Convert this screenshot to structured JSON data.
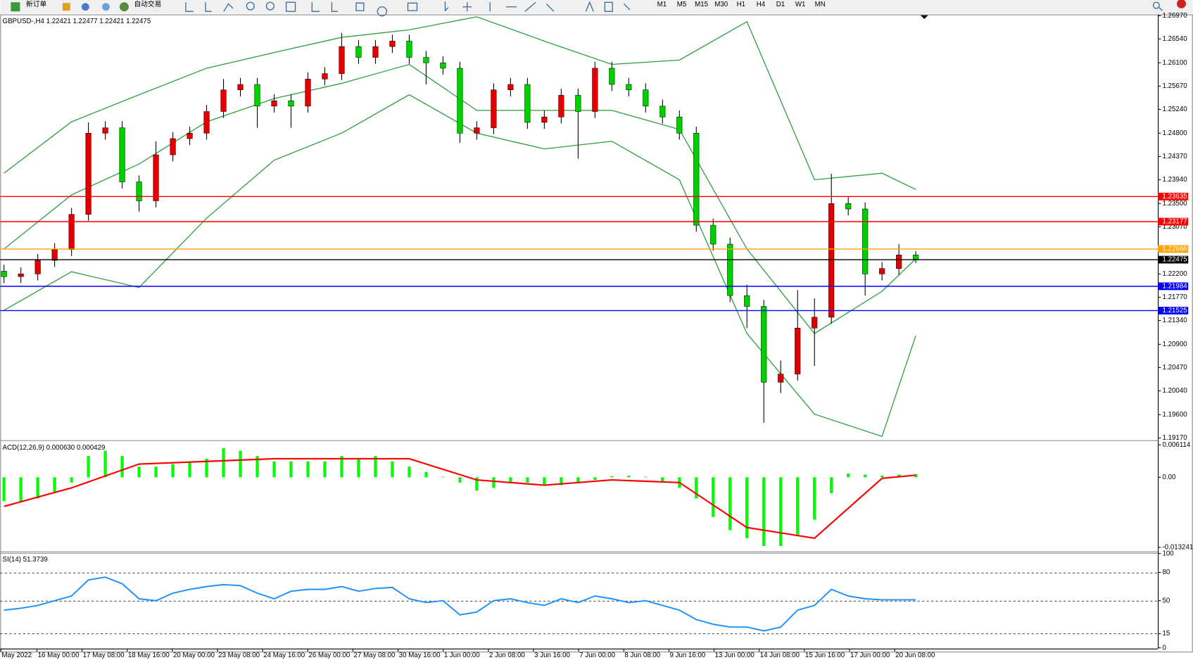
{
  "toolbar": {
    "new_order": "新订单",
    "auto_trade": "自动交易",
    "timeframes": [
      "M1",
      "M5",
      "M15",
      "M30",
      "H1",
      "H4",
      "D1",
      "W1",
      "MN"
    ]
  },
  "time_axis": [
    "May 2022",
    "16 May 00:00",
    "17 May 08:00",
    "18 May 16:00",
    "20 May 00:00",
    "23 May 08:00",
    "24 May 16:00",
    "26 May 00:00",
    "27 May 08:00",
    "30 May 16:00",
    "1 Jun 00:00",
    "2 Jun 08:00",
    "3 Jun 16:00",
    "7 Jun 00:00",
    "8 Jun 08:00",
    "9 Jun 16:00",
    "13 Jun 00:00",
    "14 Jun 08:00",
    "15 Jun 16:00",
    "17 Jun 00:00",
    "20 Jun 08:00"
  ],
  "chart_data": [
    {
      "type": "candlestick",
      "title": "GBPUSD-,H4  1.22421 1.22477 1.22421 1.22475",
      "up_color": "#e00000",
      "down_color": "#00d000",
      "wick_color": "#000000",
      "open": [
        1.2225,
        1.2215,
        1.222,
        1.2245,
        1.2265,
        1.233,
        1.248,
        1.249,
        1.239,
        1.2355,
        1.244,
        1.247,
        1.248,
        1.252,
        1.256,
        1.257,
        1.253,
        1.254,
        1.253,
        1.258,
        1.259,
        1.264,
        1.262,
        1.264,
        1.265,
        1.262,
        1.261,
        1.26,
        1.248,
        1.249,
        1.256,
        1.257,
        1.25,
        1.251,
        1.255,
        1.252,
        1.26,
        1.257,
        1.256,
        1.253,
        1.251,
        1.248,
        1.231,
        1.2275,
        1.218,
        1.216,
        1.202,
        1.2035,
        1.212,
        1.214,
        1.235,
        1.234,
        1.222,
        1.223,
        1.2255
      ],
      "high": [
        1.2237,
        1.2232,
        1.2257,
        1.2277,
        1.2342,
        1.25,
        1.2502,
        1.2502,
        1.2402,
        1.2465,
        1.2482,
        1.2492,
        1.2532,
        1.258,
        1.2582,
        1.2582,
        1.2552,
        1.2552,
        1.2592,
        1.2602,
        1.2665,
        1.2652,
        1.2652,
        1.2662,
        1.2662,
        1.2632,
        1.2622,
        1.2612,
        1.2502,
        1.2572,
        1.2582,
        1.2582,
        1.2522,
        1.2562,
        1.2562,
        1.2612,
        1.2612,
        1.2582,
        1.2572,
        1.2542,
        1.2522,
        1.2492,
        1.2322,
        1.2287,
        1.22,
        1.2172,
        1.206,
        1.219,
        1.2175,
        1.2405,
        1.2362,
        1.2352,
        1.2242,
        1.2275,
        1.2262
      ],
      "low": [
        1.2203,
        1.2203,
        1.2208,
        1.2233,
        1.2253,
        1.2318,
        1.2468,
        1.2378,
        1.2335,
        1.2343,
        1.2428,
        1.2458,
        1.2468,
        1.2508,
        1.2548,
        1.249,
        1.2518,
        1.249,
        1.2518,
        1.2568,
        1.2578,
        1.2608,
        1.2608,
        1.2628,
        1.2608,
        1.257,
        1.2588,
        1.2462,
        1.2468,
        1.2478,
        1.2548,
        1.2488,
        1.2488,
        1.2498,
        1.2433,
        1.2508,
        1.2558,
        1.2548,
        1.2518,
        1.2498,
        1.2468,
        1.2298,
        1.2263,
        1.2168,
        1.212,
        1.1945,
        1.2,
        1.2023,
        1.205,
        1.2128,
        1.2328,
        1.218,
        1.2208,
        1.2218,
        1.224
      ],
      "close": [
        1.2215,
        1.222,
        1.2245,
        1.2265,
        1.233,
        1.248,
        1.249,
        1.239,
        1.2355,
        1.244,
        1.247,
        1.248,
        1.252,
        1.256,
        1.257,
        1.253,
        1.254,
        1.253,
        1.258,
        1.259,
        1.264,
        1.262,
        1.264,
        1.265,
        1.262,
        1.261,
        1.26,
        1.248,
        1.249,
        1.256,
        1.257,
        1.25,
        1.251,
        1.255,
        1.252,
        1.26,
        1.257,
        1.256,
        1.253,
        1.251,
        1.248,
        1.231,
        1.2275,
        1.218,
        1.216,
        1.202,
        1.2035,
        1.212,
        1.214,
        1.235,
        1.234,
        1.222,
        1.223,
        1.2255,
        1.2247
      ],
      "series": [
        {
          "color": "#2e9e3e",
          "x": [
            0,
            4,
            8,
            12,
            16,
            20,
            24,
            28,
            32,
            36,
            40,
            44,
            48,
            52,
            54
          ],
          "values": [
            1.2406,
            1.2501,
            1.2551,
            1.26,
            1.2629,
            1.2657,
            1.2671,
            1.2695,
            1.265,
            1.2607,
            1.2615,
            1.2686,
            1.2394,
            1.2406,
            1.2376
          ]
        },
        {
          "color": "#2e9e3e",
          "x": [
            0,
            4,
            8,
            12,
            16,
            20,
            24,
            28,
            32,
            36,
            40,
            44,
            48,
            52,
            54
          ],
          "values": [
            1.2266,
            1.2366,
            1.2423,
            1.2501,
            1.2544,
            1.2572,
            1.2607,
            1.2522,
            1.2522,
            1.2522,
            1.2487,
            1.2266,
            1.211,
            1.2188,
            1.2248
          ]
        },
        {
          "color": "#2e9e3e",
          "x": [
            0,
            4,
            8,
            12,
            16,
            20,
            24,
            28,
            32,
            36,
            40,
            44,
            48,
            52,
            54
          ],
          "values": [
            1.2153,
            1.2224,
            1.2195,
            1.2323,
            1.243,
            1.248,
            1.2551,
            1.248,
            1.2451,
            1.2465,
            1.2394,
            1.211,
            1.1961,
            1.192,
            1.2106
          ]
        }
      ],
      "levels": [
        {
          "value": 1.23635,
          "color": "#ff0000"
        },
        {
          "value": 1.23177,
          "color": "#ff0000"
        },
        {
          "value": 1.22666,
          "color": "#ffa500"
        },
        {
          "value": 1.22475,
          "color": "#000000"
        },
        {
          "value": 1.21984,
          "color": "#0000ff"
        },
        {
          "value": 1.21525,
          "color": "#0000ff"
        }
      ],
      "ylim": [
        1.19142,
        1.26979
      ],
      "yticks": [
        {
          "value": 1.2697,
          "label": "1.26970"
        },
        {
          "value": 1.2654,
          "label": "1.26540"
        },
        {
          "value": 1.261,
          "label": "1.26100"
        },
        {
          "value": 1.2567,
          "label": "1.25670"
        },
        {
          "value": 1.2524,
          "label": "1.25240"
        },
        {
          "value": 1.248,
          "label": "1.24800"
        },
        {
          "value": 1.2437,
          "label": "1.24370"
        },
        {
          "value": 1.2394,
          "label": "1.23940"
        },
        {
          "value": 1.235,
          "label": "1.23500"
        },
        {
          "value": 1.2307,
          "label": "1.23070"
        },
        {
          "value": 1.222,
          "label": "1.22200"
        },
        {
          "value": 1.2177,
          "label": "1.21770"
        },
        {
          "value": 1.2134,
          "label": "1.21340"
        },
        {
          "value": 1.209,
          "label": "1.20900"
        },
        {
          "value": 1.2047,
          "label": "1.20470"
        },
        {
          "value": 1.2004,
          "label": "1.20040"
        },
        {
          "value": 1.196,
          "label": "1.19600"
        },
        {
          "value": 1.1917,
          "label": "1.19170"
        }
      ]
    },
    {
      "type": "bar",
      "title": "ACD(12,26,9) 0.000630 0.000429",
      "color": "#00ff00",
      "values": [
        -0.0045,
        -0.0045,
        -0.004,
        -0.003,
        -0.001,
        0.004,
        0.005,
        0.004,
        0.002,
        0.002,
        0.0025,
        0.003,
        0.0035,
        0.0055,
        0.005,
        0.004,
        0.003,
        0.003,
        0.003,
        0.003,
        0.004,
        0.0035,
        0.004,
        0.003,
        0.002,
        0.001,
        0.0001,
        -0.001,
        -0.0025,
        -0.002,
        -0.001,
        -0.001,
        -0.0015,
        -0.0015,
        -0.001,
        -0.0005,
        0.0002,
        0.0003,
        0.0001,
        -0.001,
        -0.002,
        -0.004,
        -0.0075,
        -0.01,
        -0.0115,
        -0.013,
        -0.013,
        -0.011,
        -0.008,
        -0.003,
        0.0007,
        0.0005,
        0.0003,
        0.0005,
        0.0006
      ],
      "series": [
        {
          "color": "#ff0000",
          "x": [
            0,
            4,
            8,
            12,
            16,
            20,
            24,
            28,
            32,
            36,
            40,
            44,
            48,
            52,
            54
          ],
          "values": [
            -0.0055,
            -0.002,
            0.0025,
            0.003,
            0.0035,
            0.0035,
            0.0035,
            -0.0005,
            -0.0015,
            -0.0005,
            -0.001,
            -0.0095,
            -0.0115,
            -0.0002,
            0.0004
          ]
        }
      ],
      "ylim": [
        -0.01383,
        0.0067
      ],
      "yticks": [
        0.006114,
        {
          "value": 0,
          "label": "0.00"
        },
        -0.013241
      ]
    },
    {
      "type": "line",
      "title": "SI(14) 51.3739",
      "color": "#1e90ff",
      "values": [
        40,
        42,
        45,
        50,
        55,
        72,
        75,
        68,
        52,
        50,
        58,
        62,
        65,
        67,
        66,
        58,
        52,
        60,
        62,
        62,
        65,
        60,
        63,
        64,
        52,
        48,
        50,
        35,
        38,
        50,
        52,
        48,
        45,
        52,
        48,
        55,
        52,
        48,
        50,
        45,
        40,
        30,
        25,
        22,
        22,
        18,
        22,
        40,
        45,
        62,
        55,
        52,
        51,
        51,
        51
      ],
      "levels": [
        80,
        50,
        15
      ],
      "ylim": [
        0,
        100
      ],
      "yticks": [
        100,
        80,
        50,
        15,
        0
      ]
    }
  ]
}
